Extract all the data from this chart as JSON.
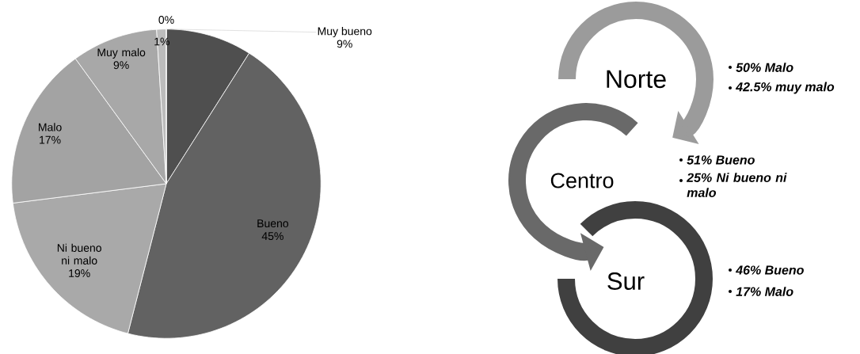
{
  "chart_data": [
    {
      "type": "pie",
      "categories": [
        "Muy bueno",
        "Bueno",
        "Ni bueno ni malo",
        "Malo",
        "Muy malo",
        null,
        null
      ],
      "values": [
        9,
        45,
        19,
        17,
        9,
        1,
        0
      ],
      "colors": [
        "#4f4f4f",
        "#626262",
        "#a9a9a9",
        "#a3a3a3",
        "#a8a8a8",
        "#bcbcbc",
        "#d4d4d4"
      ],
      "value_labels": [
        "9%",
        "45%",
        "19%",
        "17%",
        "9%",
        "1%",
        "0%"
      ]
    },
    {
      "type": "other",
      "annotations": [
        "Norte",
        "50% Malo",
        "42.5% muy malo",
        "Centro",
        "51% Bueno",
        "25% Ni bueno ni malo",
        "Sur",
        "46% Bueno",
        "17% Malo"
      ]
    }
  ]
}
